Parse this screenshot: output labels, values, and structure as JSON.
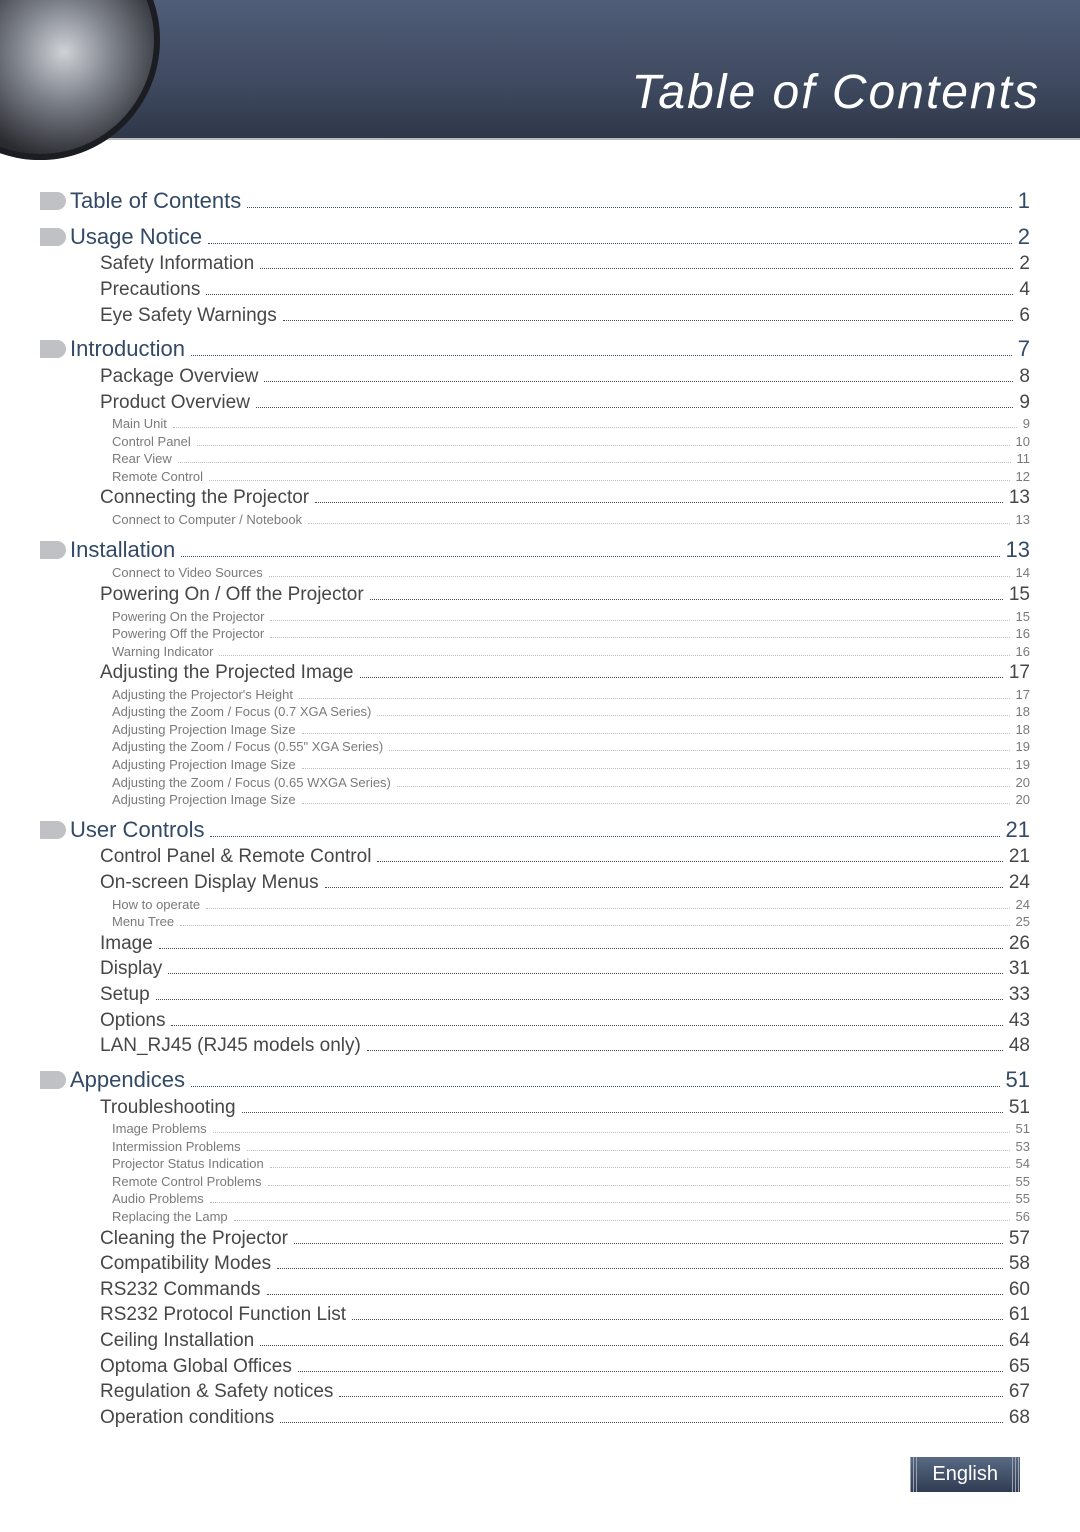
{
  "title": "Table of Contents",
  "footer_label": "English",
  "colors": {
    "header_text": "#ffffff",
    "section": "#334a66",
    "sub": "#474747",
    "subsub": "#7a7a7a"
  },
  "toc": [
    {
      "level": 1,
      "label": "Table of Contents",
      "page": "1"
    },
    {
      "level": 1,
      "label": "Usage Notice",
      "page": "2"
    },
    {
      "level": 2,
      "label": "Safety Information",
      "page": "2"
    },
    {
      "level": 2,
      "label": "Precautions",
      "page": "4"
    },
    {
      "level": 2,
      "label": "Eye Safety Warnings",
      "page": "6"
    },
    {
      "level": 1,
      "label": "Introduction",
      "page": "7"
    },
    {
      "level": 2,
      "label": "Package Overview",
      "page": "8"
    },
    {
      "level": 2,
      "label": "Product Overview",
      "page": "9"
    },
    {
      "level": 3,
      "label": "Main Unit",
      "page": "9"
    },
    {
      "level": 3,
      "label": "Control Panel",
      "page": "10"
    },
    {
      "level": 3,
      "label": "Rear View",
      "page": "11"
    },
    {
      "level": 3,
      "label": "Remote Control",
      "page": "12"
    },
    {
      "level": 2,
      "label": "Connecting the Projector",
      "page": "13"
    },
    {
      "level": 3,
      "label": "Connect to Computer / Notebook",
      "page": "13"
    },
    {
      "level": 1,
      "label": "Installation",
      "page": "13"
    },
    {
      "level": 3,
      "label": "Connect to Video Sources",
      "page": "14"
    },
    {
      "level": 2,
      "label": "Powering On / Off the Projector",
      "page": "15"
    },
    {
      "level": 3,
      "label": "Powering On the Projector",
      "page": "15"
    },
    {
      "level": 3,
      "label": "Powering Off the Projector",
      "page": "16"
    },
    {
      "level": 3,
      "label": "Warning Indicator",
      "page": "16"
    },
    {
      "level": 2,
      "label": "Adjusting the Projected Image",
      "page": "17"
    },
    {
      "level": 3,
      "label": "Adjusting the Projector's Height",
      "page": "17"
    },
    {
      "level": 3,
      "label": "Adjusting the Zoom / Focus (0.7 XGA Series)",
      "page": "18"
    },
    {
      "level": 3,
      "label": "Adjusting Projection Image Size",
      "page": "18"
    },
    {
      "level": 3,
      "label": "Adjusting the Zoom / Focus (0.55\" XGA Series)",
      "page": "19"
    },
    {
      "level": 3,
      "label": "Adjusting Projection Image Size",
      "page": "19"
    },
    {
      "level": 3,
      "label": "Adjusting the Zoom / Focus (0.65 WXGA Series)",
      "page": "20"
    },
    {
      "level": 3,
      "label": "Adjusting Projection Image Size",
      "page": "20"
    },
    {
      "level": 1,
      "label": "User Controls",
      "page": "21"
    },
    {
      "level": 2,
      "label": "Control Panel & Remote Control",
      "page": "21"
    },
    {
      "level": 2,
      "label": "On-screen Display Menus",
      "page": "24"
    },
    {
      "level": 3,
      "label": "How to operate",
      "page": "24"
    },
    {
      "level": 3,
      "label": "Menu Tree",
      "page": "25"
    },
    {
      "level": 2,
      "label": "Image",
      "page": "26"
    },
    {
      "level": 2,
      "label": "Display",
      "page": "31"
    },
    {
      "level": 2,
      "label": "Setup",
      "page": "33"
    },
    {
      "level": 2,
      "label": "Options",
      "page": "43"
    },
    {
      "level": 2,
      "label": "LAN_RJ45 (RJ45 models only)",
      "page": "48"
    },
    {
      "level": 1,
      "label": "Appendices",
      "page": "51"
    },
    {
      "level": 2,
      "label": "Troubleshooting",
      "page": "51"
    },
    {
      "level": 3,
      "label": "Image Problems",
      "page": "51"
    },
    {
      "level": 3,
      "label": "Intermission Problems",
      "page": "53"
    },
    {
      "level": 3,
      "label": "Projector Status Indication",
      "page": "54"
    },
    {
      "level": 3,
      "label": "Remote Control Problems",
      "page": "55"
    },
    {
      "level": 3,
      "label": "Audio Problems",
      "page": "55"
    },
    {
      "level": 3,
      "label": "Replacing the Lamp",
      "page": "56"
    },
    {
      "level": 2,
      "label": "Cleaning the Projector",
      "page": "57"
    },
    {
      "level": 2,
      "label": "Compatibility Modes",
      "page": "58"
    },
    {
      "level": 2,
      "label": "RS232 Commands",
      "page": "60"
    },
    {
      "level": 2,
      "label": "RS232 Protocol Function List",
      "page": "61"
    },
    {
      "level": 2,
      "label": "Ceiling Installation",
      "page": "64"
    },
    {
      "level": 2,
      "label": "Optoma Global Offices",
      "page": "65"
    },
    {
      "level": 2,
      "label": "Regulation & Safety notices",
      "page": "67"
    },
    {
      "level": 2,
      "label": "Operation conditions",
      "page": "68"
    }
  ]
}
